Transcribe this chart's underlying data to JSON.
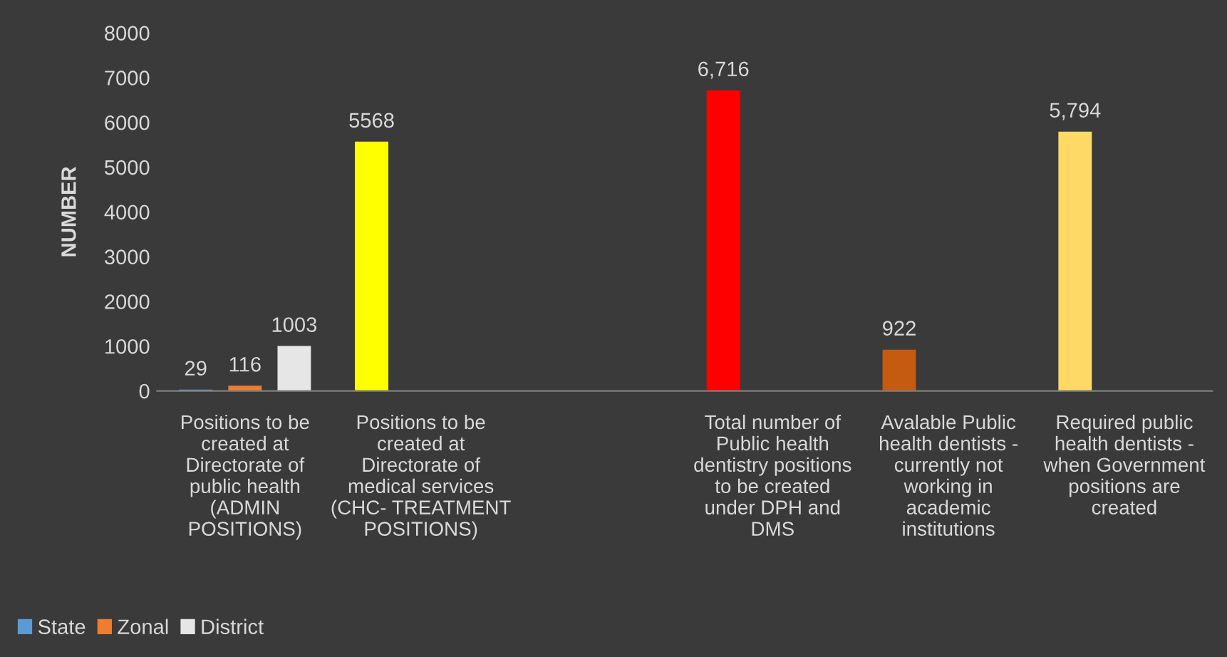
{
  "chart_data": {
    "type": "bar",
    "ylabel": "NUMBER",
    "categories": [
      "Positions to be\ncreated at\nDirectorate of\npublic health\n(ADMIN\nPOSITIONS)",
      "Positions to be\ncreated at\nDirectorate of\nmedical services\n(CHC- TREATMENT\nPOSITIONS)",
      null,
      "Total number of\nPublic health\ndentistry positions\nto be created\nunder DPH and\nDMS",
      "Avalable Public\nhealth dentists -\ncurrently not\nworking in\nacademic\ninstitutions",
      "Required public\nhealth dentists -\nwhen Government\npositions are\ncreated"
    ],
    "series": [
      {
        "name": "State",
        "color": "#5b9bd5",
        "colors": [
          "#5b9bd5",
          "#ffff00",
          null,
          "#ff0000",
          "#c55a11",
          "#ffd966"
        ],
        "values": [
          29,
          5568,
          null,
          6716,
          922,
          5794
        ],
        "value_labels": [
          "29",
          "5568",
          null,
          "6,716",
          "922",
          "5,794"
        ]
      },
      {
        "name": "Zonal",
        "color": "#ed7d31",
        "values": [
          116,
          null,
          null,
          null,
          null,
          null
        ],
        "value_labels": [
          "116",
          null,
          null,
          null,
          null,
          null
        ]
      },
      {
        "name": "District",
        "color": "#e7e6e6",
        "values": [
          1003,
          null,
          null,
          null,
          null,
          null
        ],
        "value_labels": [
          "1003",
          null,
          null,
          null,
          null,
          null
        ]
      }
    ],
    "ylim": [
      0,
      8000
    ],
    "yticks": [
      0,
      1000,
      2000,
      3000,
      4000,
      5000,
      6000,
      7000,
      8000
    ],
    "grid": false,
    "legend": "bottom left"
  }
}
